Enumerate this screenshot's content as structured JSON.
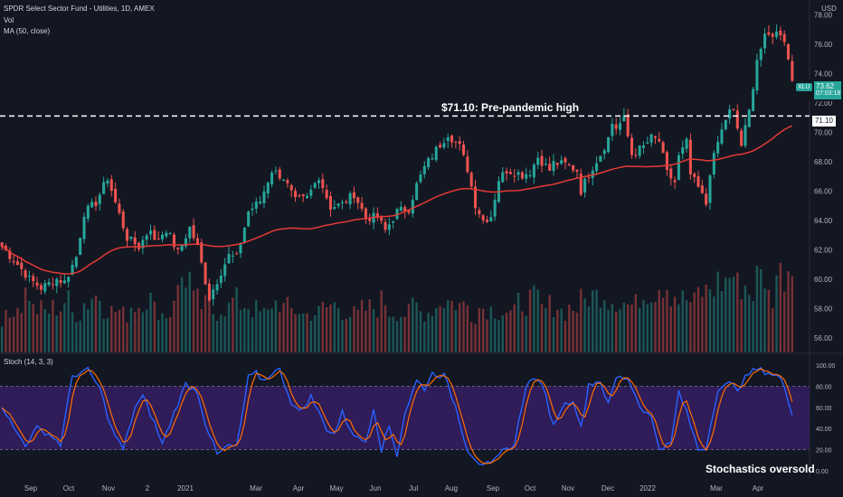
{
  "header": {
    "title": "SPDR Select Sector Fund - Utilities, 1D, AMEX",
    "vol_label": "Vol",
    "ma_label": "MA (50, close)",
    "currency": "USD"
  },
  "stoch_panel": {
    "label": "Stoch (14, 3, 3)"
  },
  "price_tag": {
    "symbol": "XLU",
    "value": "73.62",
    "countdown": "07:03:18",
    "color": "#26a69a"
  },
  "level_tag": {
    "value": "71.10"
  },
  "annotations": {
    "pre_pandemic": "$71.10: Pre-pandemic high",
    "stochastics": "Stochastics oversold"
  },
  "colors": {
    "background": "#131722",
    "up": "#26a69a",
    "down": "#ef5350",
    "ma": "#e53935",
    "stoch_k": "#2962ff",
    "stoch_d": "#ff6d00",
    "stoch_band": "#3a1f6b"
  },
  "chart_data": [
    {
      "type": "candlestick",
      "title": "SPDR Select Sector Fund - Utilities, 1D, AMEX",
      "y_axis_ticks": [
        "78.00",
        "76.00",
        "74.00",
        "72.00",
        "70.00",
        "68.00",
        "66.00",
        "64.00",
        "62.00",
        "60.00",
        "58.00",
        "56.00"
      ],
      "ylim": [
        55,
        79
      ],
      "x_axis_ticks": [
        "Sep",
        "Oct",
        "Nov",
        "2",
        "2021",
        "Mar",
        "Apr",
        "May",
        "Jun",
        "Jul",
        "Aug",
        "Sep",
        "Oct",
        "Nov",
        "Dec",
        "2022",
        "Mar",
        "Apr"
      ],
      "reference_level": 71.1,
      "close_path": [
        [
          0,
          62.2
        ],
        [
          4,
          61.0
        ],
        [
          7,
          60.0
        ],
        [
          10,
          59.4
        ],
        [
          14,
          60.0
        ],
        [
          16,
          59.8
        ],
        [
          19,
          61.5
        ],
        [
          21,
          64.5
        ],
        [
          24,
          65.2
        ],
        [
          27,
          66.9
        ],
        [
          29,
          65.2
        ],
        [
          32,
          62.8
        ],
        [
          35,
          62.2
        ],
        [
          38,
          63.5
        ],
        [
          39,
          62.5
        ],
        [
          42,
          63.4
        ],
        [
          45,
          61.8
        ],
        [
          48,
          63.5
        ],
        [
          50,
          62.2
        ],
        [
          53,
          58.7
        ],
        [
          56,
          60.5
        ],
        [
          58,
          61.6
        ],
        [
          60,
          61.4
        ],
        [
          63,
          64.6
        ],
        [
          66,
          65.3
        ],
        [
          69,
          67.4
        ],
        [
          72,
          66.9
        ],
        [
          75,
          65.3
        ],
        [
          78,
          65.5
        ],
        [
          81,
          67.0
        ],
        [
          84,
          64.9
        ],
        [
          87,
          65.1
        ],
        [
          90,
          65.8
        ],
        [
          93,
          64.2
        ],
        [
          96,
          64.2
        ],
        [
          98,
          63.3
        ],
        [
          101,
          64.6
        ],
        [
          104,
          64.8
        ],
        [
          106,
          66.4
        ],
        [
          108,
          67.6
        ],
        [
          111,
          68.8
        ],
        [
          114,
          69.9
        ],
        [
          117,
          69.0
        ],
        [
          119,
          67.5
        ],
        [
          121,
          65.1
        ],
        [
          123,
          64.0
        ],
        [
          125,
          64.3
        ],
        [
          127,
          66.8
        ],
        [
          129,
          67.4
        ],
        [
          131,
          67.3
        ],
        [
          133,
          67.1
        ],
        [
          135,
          67.3
        ],
        [
          137,
          68.3
        ],
        [
          140,
          67.4
        ],
        [
          141,
          67.9
        ],
        [
          144,
          67.8
        ],
        [
          147,
          67.4
        ],
        [
          148,
          66.0
        ],
        [
          150,
          67.2
        ],
        [
          153,
          68.5
        ],
        [
          155,
          69.6
        ],
        [
          156,
          70.6
        ],
        [
          157,
          70.3
        ],
        [
          159,
          70.9
        ],
        [
          161,
          68.5
        ],
        [
          164,
          69.0
        ],
        [
          166,
          69.6
        ],
        [
          168,
          69.4
        ],
        [
          170,
          67.2
        ],
        [
          172,
          66.6
        ],
        [
          173,
          68.3
        ],
        [
          175,
          69.3
        ],
        [
          176,
          67.1
        ],
        [
          178,
          66.2
        ],
        [
          180,
          65.1
        ],
        [
          181,
          67.3
        ],
        [
          183,
          69.3
        ],
        [
          185,
          70.9
        ],
        [
          186,
          71.4
        ],
        [
          187,
          71.4
        ],
        [
          189,
          69.1
        ],
        [
          191,
          71.4
        ],
        [
          193,
          75.0
        ],
        [
          195,
          76.4
        ],
        [
          197,
          76.7
        ],
        [
          199,
          76.8
        ],
        [
          200,
          76.3
        ],
        [
          202,
          73.6
        ]
      ],
      "volume_relative": [
        40,
        55,
        70,
        50,
        48,
        52,
        60,
        45,
        58,
        66,
        52,
        48,
        44,
        55,
        62,
        50,
        45,
        70,
        88,
        60,
        54,
        47,
        52,
        61,
        56,
        50,
        45,
        58,
        52,
        49,
        44,
        46,
        52,
        55,
        48,
        44,
        50,
        52,
        60,
        48,
        45,
        55,
        47,
        52,
        60,
        58,
        55,
        45,
        52,
        50,
        48,
        45,
        58,
        62,
        50,
        55,
        48,
        52,
        60,
        66,
        70,
        62,
        58,
        55,
        66,
        72,
        80,
        68,
        62,
        58,
        70,
        75,
        82,
        90,
        78,
        70,
        88,
        65,
        92,
        100
      ],
      "stoch_k_path": [
        [
          0,
          62
        ],
        [
          3,
          40
        ],
        [
          6,
          25
        ],
        [
          9,
          40
        ],
        [
          12,
          35
        ],
        [
          15,
          25
        ],
        [
          18,
          90
        ],
        [
          22,
          95
        ],
        [
          25,
          78
        ],
        [
          28,
          40
        ],
        [
          31,
          20
        ],
        [
          34,
          60
        ],
        [
          36,
          70
        ],
        [
          39,
          45
        ],
        [
          41,
          25
        ],
        [
          44,
          55
        ],
        [
          47,
          82
        ],
        [
          50,
          75
        ],
        [
          52,
          45
        ],
        [
          55,
          15
        ],
        [
          58,
          24
        ],
        [
          60,
          22
        ],
        [
          63,
          88
        ],
        [
          65,
          92
        ],
        [
          67,
          85
        ],
        [
          69,
          93
        ],
        [
          71,
          95
        ],
        [
          74,
          65
        ],
        [
          76,
          55
        ],
        [
          79,
          70
        ],
        [
          81,
          55
        ],
        [
          83,
          40
        ],
        [
          85,
          35
        ],
        [
          87,
          55
        ],
        [
          89,
          40
        ],
        [
          91,
          30
        ],
        [
          93,
          28
        ],
        [
          95,
          60
        ],
        [
          97,
          20
        ],
        [
          99,
          42
        ],
        [
          101,
          15
        ],
        [
          103,
          55
        ],
        [
          106,
          85
        ],
        [
          108,
          78
        ],
        [
          110,
          92
        ],
        [
          113,
          90
        ],
        [
          116,
          60
        ],
        [
          119,
          20
        ],
        [
          122,
          8
        ],
        [
          125,
          5
        ],
        [
          128,
          18
        ],
        [
          131,
          25
        ],
        [
          134,
          82
        ],
        [
          137,
          88
        ],
        [
          139,
          70
        ],
        [
          141,
          42
        ],
        [
          143,
          60
        ],
        [
          146,
          68
        ],
        [
          148,
          40
        ],
        [
          150,
          82
        ],
        [
          153,
          85
        ],
        [
          155,
          62
        ],
        [
          157,
          88
        ],
        [
          160,
          88
        ],
        [
          163,
          62
        ],
        [
          166,
          50
        ],
        [
          168,
          22
        ],
        [
          171,
          25
        ],
        [
          173,
          75
        ],
        [
          175,
          55
        ],
        [
          178,
          20
        ],
        [
          180,
          22
        ],
        [
          183,
          78
        ],
        [
          186,
          82
        ],
        [
          188,
          78
        ],
        [
          191,
          92
        ],
        [
          193,
          96
        ],
        [
          196,
          93
        ],
        [
          199,
          88
        ],
        [
          202,
          55
        ],
        [
          203,
          18
        ]
      ],
      "stoch_levels": [
        80,
        20
      ],
      "stoch_ticks": [
        "100.00",
        "80.00",
        "60.00",
        "40.00",
        "20.00",
        "0.00"
      ]
    }
  ]
}
